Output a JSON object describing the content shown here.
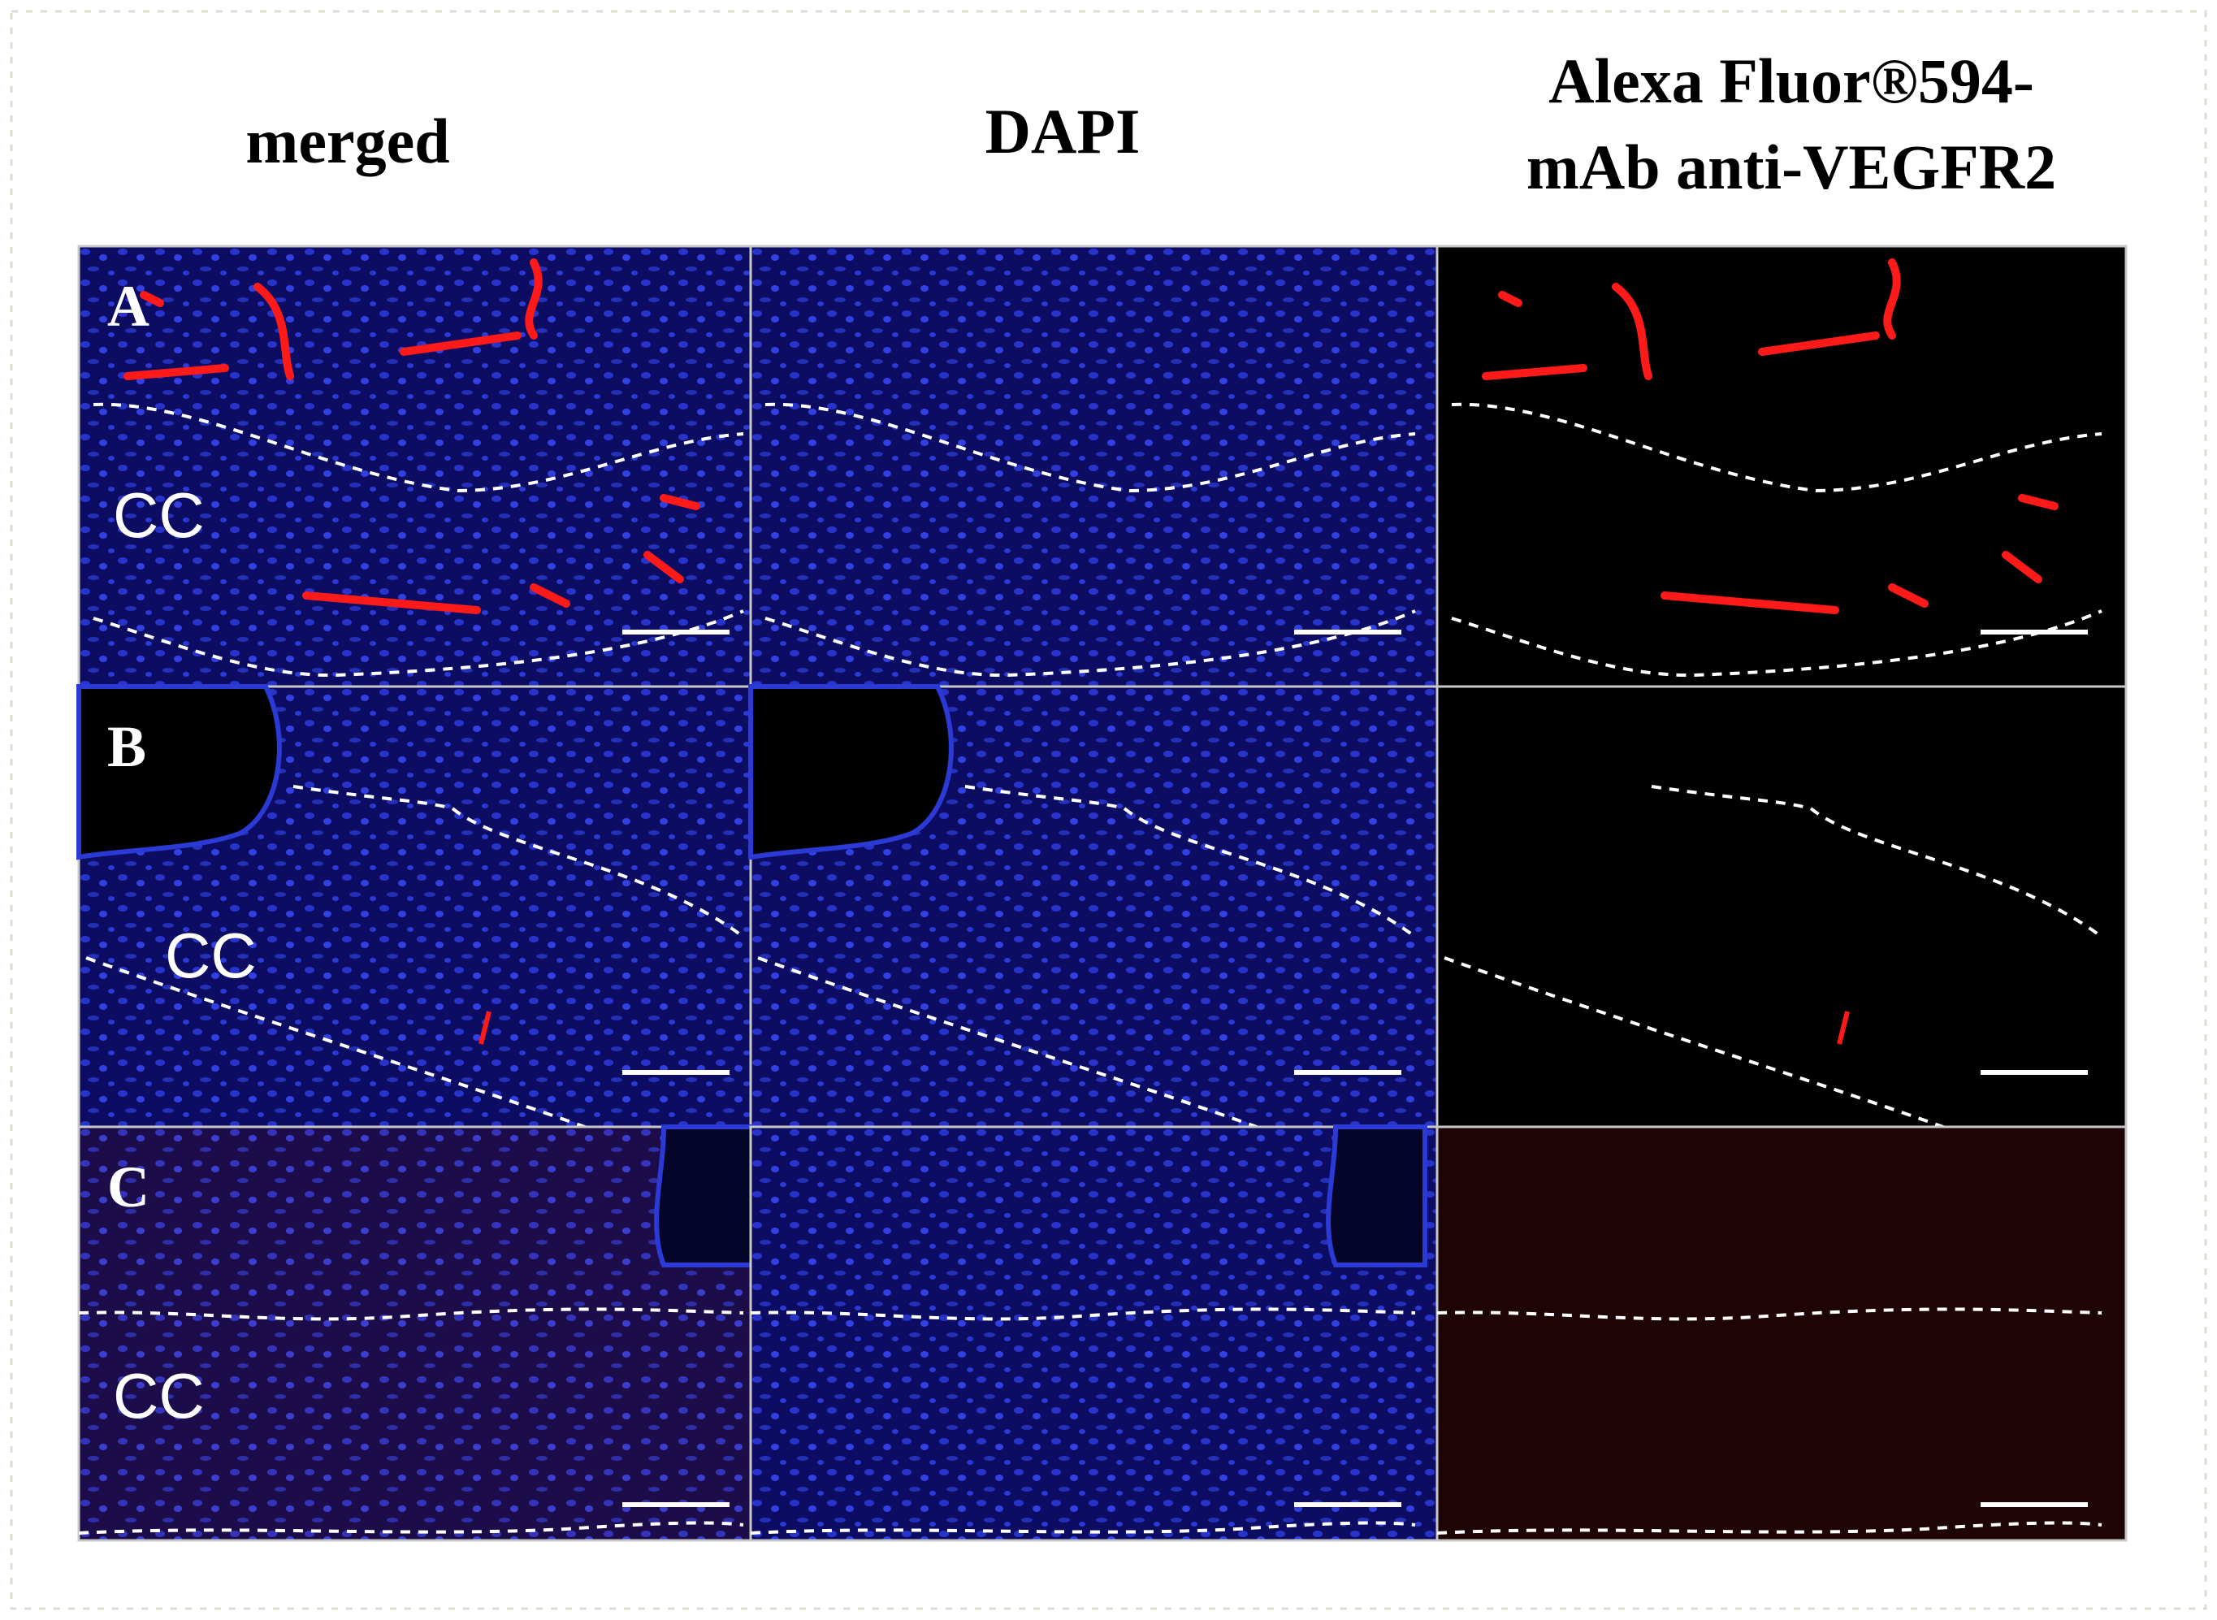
{
  "figure": {
    "columns": [
      "merged",
      "DAPI",
      [
        "Alexa Fluor®594-",
        "mAb anti-VEGFR2"
      ]
    ],
    "rows": [
      {
        "label": "A",
        "region": "CC"
      },
      {
        "label": "B",
        "region": "CC"
      },
      {
        "label": "C",
        "region": "CC"
      }
    ]
  }
}
